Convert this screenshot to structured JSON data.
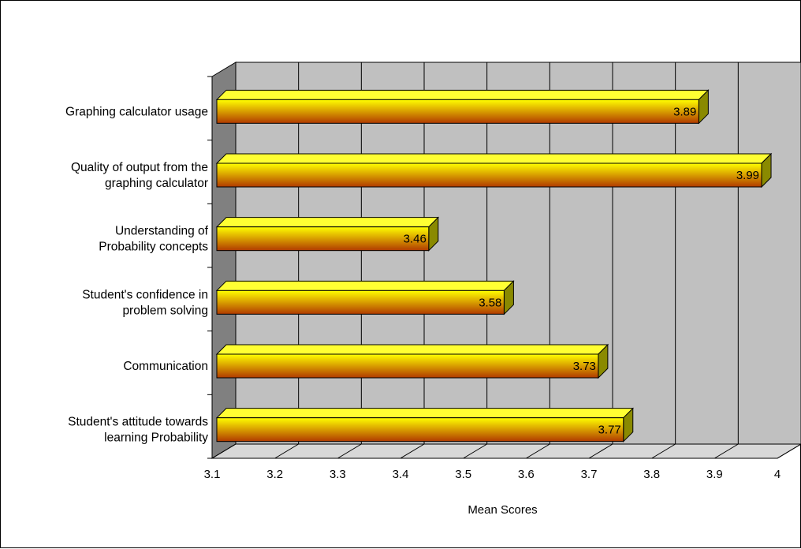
{
  "chart_data": {
    "type": "bar",
    "orientation": "horizontal",
    "style": "3d",
    "categories": [
      [
        "Student's attitude towards",
        "learning Probability"
      ],
      [
        "Communication"
      ],
      [
        "Student's confidence in",
        "problem solving"
      ],
      [
        "Understanding of",
        "Probability concepts"
      ],
      [
        "Quality of output from the",
        "graphing calculator"
      ],
      [
        "Graphing calculator usage"
      ]
    ],
    "values": [
      3.77,
      3.73,
      3.58,
      3.46,
      3.99,
      3.89
    ],
    "value_labels": [
      "3.77",
      "3.73",
      "3.58",
      "3.46",
      "3.99",
      "3.89"
    ],
    "xlabel": "Mean Scores",
    "ylabel": "",
    "title": "",
    "xlim": [
      3.1,
      4
    ],
    "xticks": [
      "3.1",
      "3.2",
      "3.3",
      "3.4",
      "3.5",
      "3.6",
      "3.7",
      "3.8",
      "3.9",
      "4"
    ],
    "grid": true,
    "legend": "none",
    "colors": {
      "bar_top": "#ffff00",
      "bar_bottom": "#b03a00",
      "bar_cap": "#8a8a00",
      "bar_top_face": "#ffff33",
      "wall": "#c0c0c0",
      "wall_side": "#808080",
      "floor": "#d8d8d8",
      "grid": "#000000"
    }
  }
}
